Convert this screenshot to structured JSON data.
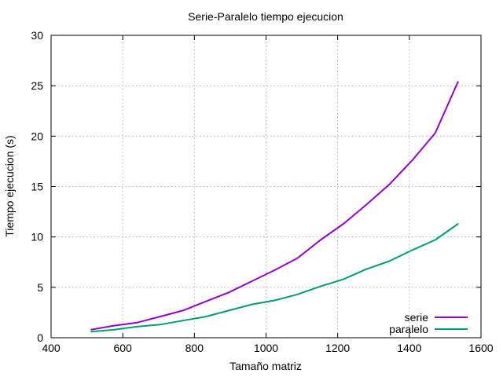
{
  "chart_data": {
    "type": "line",
    "title": "Serie-Paralelo tiempo ejecucion",
    "xlabel": "Tamaño matriz",
    "ylabel": "Tiempo ejecucion (s)",
    "xlim": [
      400,
      1600
    ],
    "ylim": [
      0,
      30
    ],
    "xticks": [
      400,
      600,
      800,
      1000,
      1200,
      1400,
      1600
    ],
    "yticks": [
      0,
      5,
      10,
      15,
      20,
      25,
      30
    ],
    "grid": true,
    "legend_position": "bottom-right",
    "series": [
      {
        "name": "serie",
        "color": "#9400d3",
        "x": [
          512,
          576,
          640,
          704,
          768,
          832,
          896,
          960,
          1024,
          1088,
          1152,
          1216,
          1280,
          1344,
          1408,
          1472,
          1536
        ],
        "y": [
          0.8,
          1.2,
          1.5,
          2.1,
          2.7,
          3.6,
          4.5,
          5.6,
          6.7,
          7.9,
          9.7,
          11.3,
          13.2,
          15.2,
          17.6,
          20.3,
          25.4
        ]
      },
      {
        "name": "paralelo",
        "color": "#009e73",
        "x": [
          512,
          576,
          640,
          704,
          768,
          832,
          896,
          960,
          1024,
          1088,
          1152,
          1216,
          1280,
          1344,
          1408,
          1472,
          1536
        ],
        "y": [
          0.6,
          0.8,
          1.1,
          1.3,
          1.7,
          2.1,
          2.7,
          3.3,
          3.7,
          4.3,
          5.1,
          5.8,
          6.8,
          7.6,
          8.7,
          9.7,
          11.3
        ]
      }
    ]
  }
}
